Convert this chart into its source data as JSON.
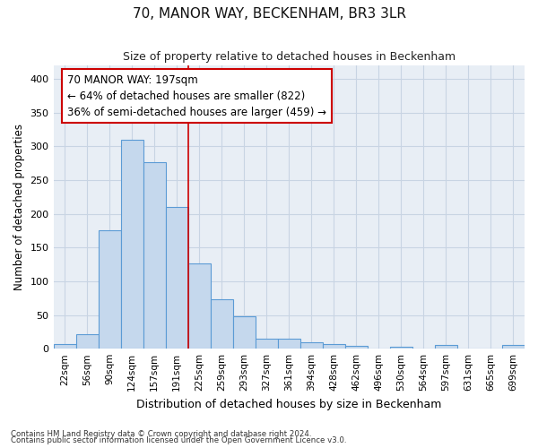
{
  "title": "70, MANOR WAY, BECKENHAM, BR3 3LR",
  "subtitle": "Size of property relative to detached houses in Beckenham",
  "xlabel": "Distribution of detached houses by size in Beckenham",
  "ylabel": "Number of detached properties",
  "bar_labels": [
    "22sqm",
    "56sqm",
    "90sqm",
    "124sqm",
    "157sqm",
    "191sqm",
    "225sqm",
    "259sqm",
    "293sqm",
    "327sqm",
    "361sqm",
    "394sqm",
    "428sqm",
    "462sqm",
    "496sqm",
    "530sqm",
    "564sqm",
    "597sqm",
    "631sqm",
    "665sqm",
    "699sqm"
  ],
  "bar_values": [
    7,
    21,
    175,
    310,
    277,
    210,
    127,
    73,
    48,
    15,
    15,
    9,
    7,
    4,
    0,
    3,
    0,
    5,
    0,
    0,
    5
  ],
  "bar_color": "#c5d8ed",
  "bar_edge_color": "#5b9bd5",
  "grid_color": "#c8d4e3",
  "background_color": "#e8eef5",
  "vline_x_idx": 5,
  "vline_color": "#cc0000",
  "annotation_text": "70 MANOR WAY: 197sqm\n← 64% of detached houses are smaller (822)\n36% of semi-detached houses are larger (459) →",
  "annotation_box_color": "white",
  "annotation_box_edge": "#cc0000",
  "footnote1": "Contains HM Land Registry data © Crown copyright and database right 2024.",
  "footnote2": "Contains public sector information licensed under the Open Government Licence v3.0.",
  "ylim": [
    0,
    420
  ],
  "yticks": [
    0,
    50,
    100,
    150,
    200,
    250,
    300,
    350,
    400
  ],
  "title_fontsize": 11,
  "subtitle_fontsize": 9
}
